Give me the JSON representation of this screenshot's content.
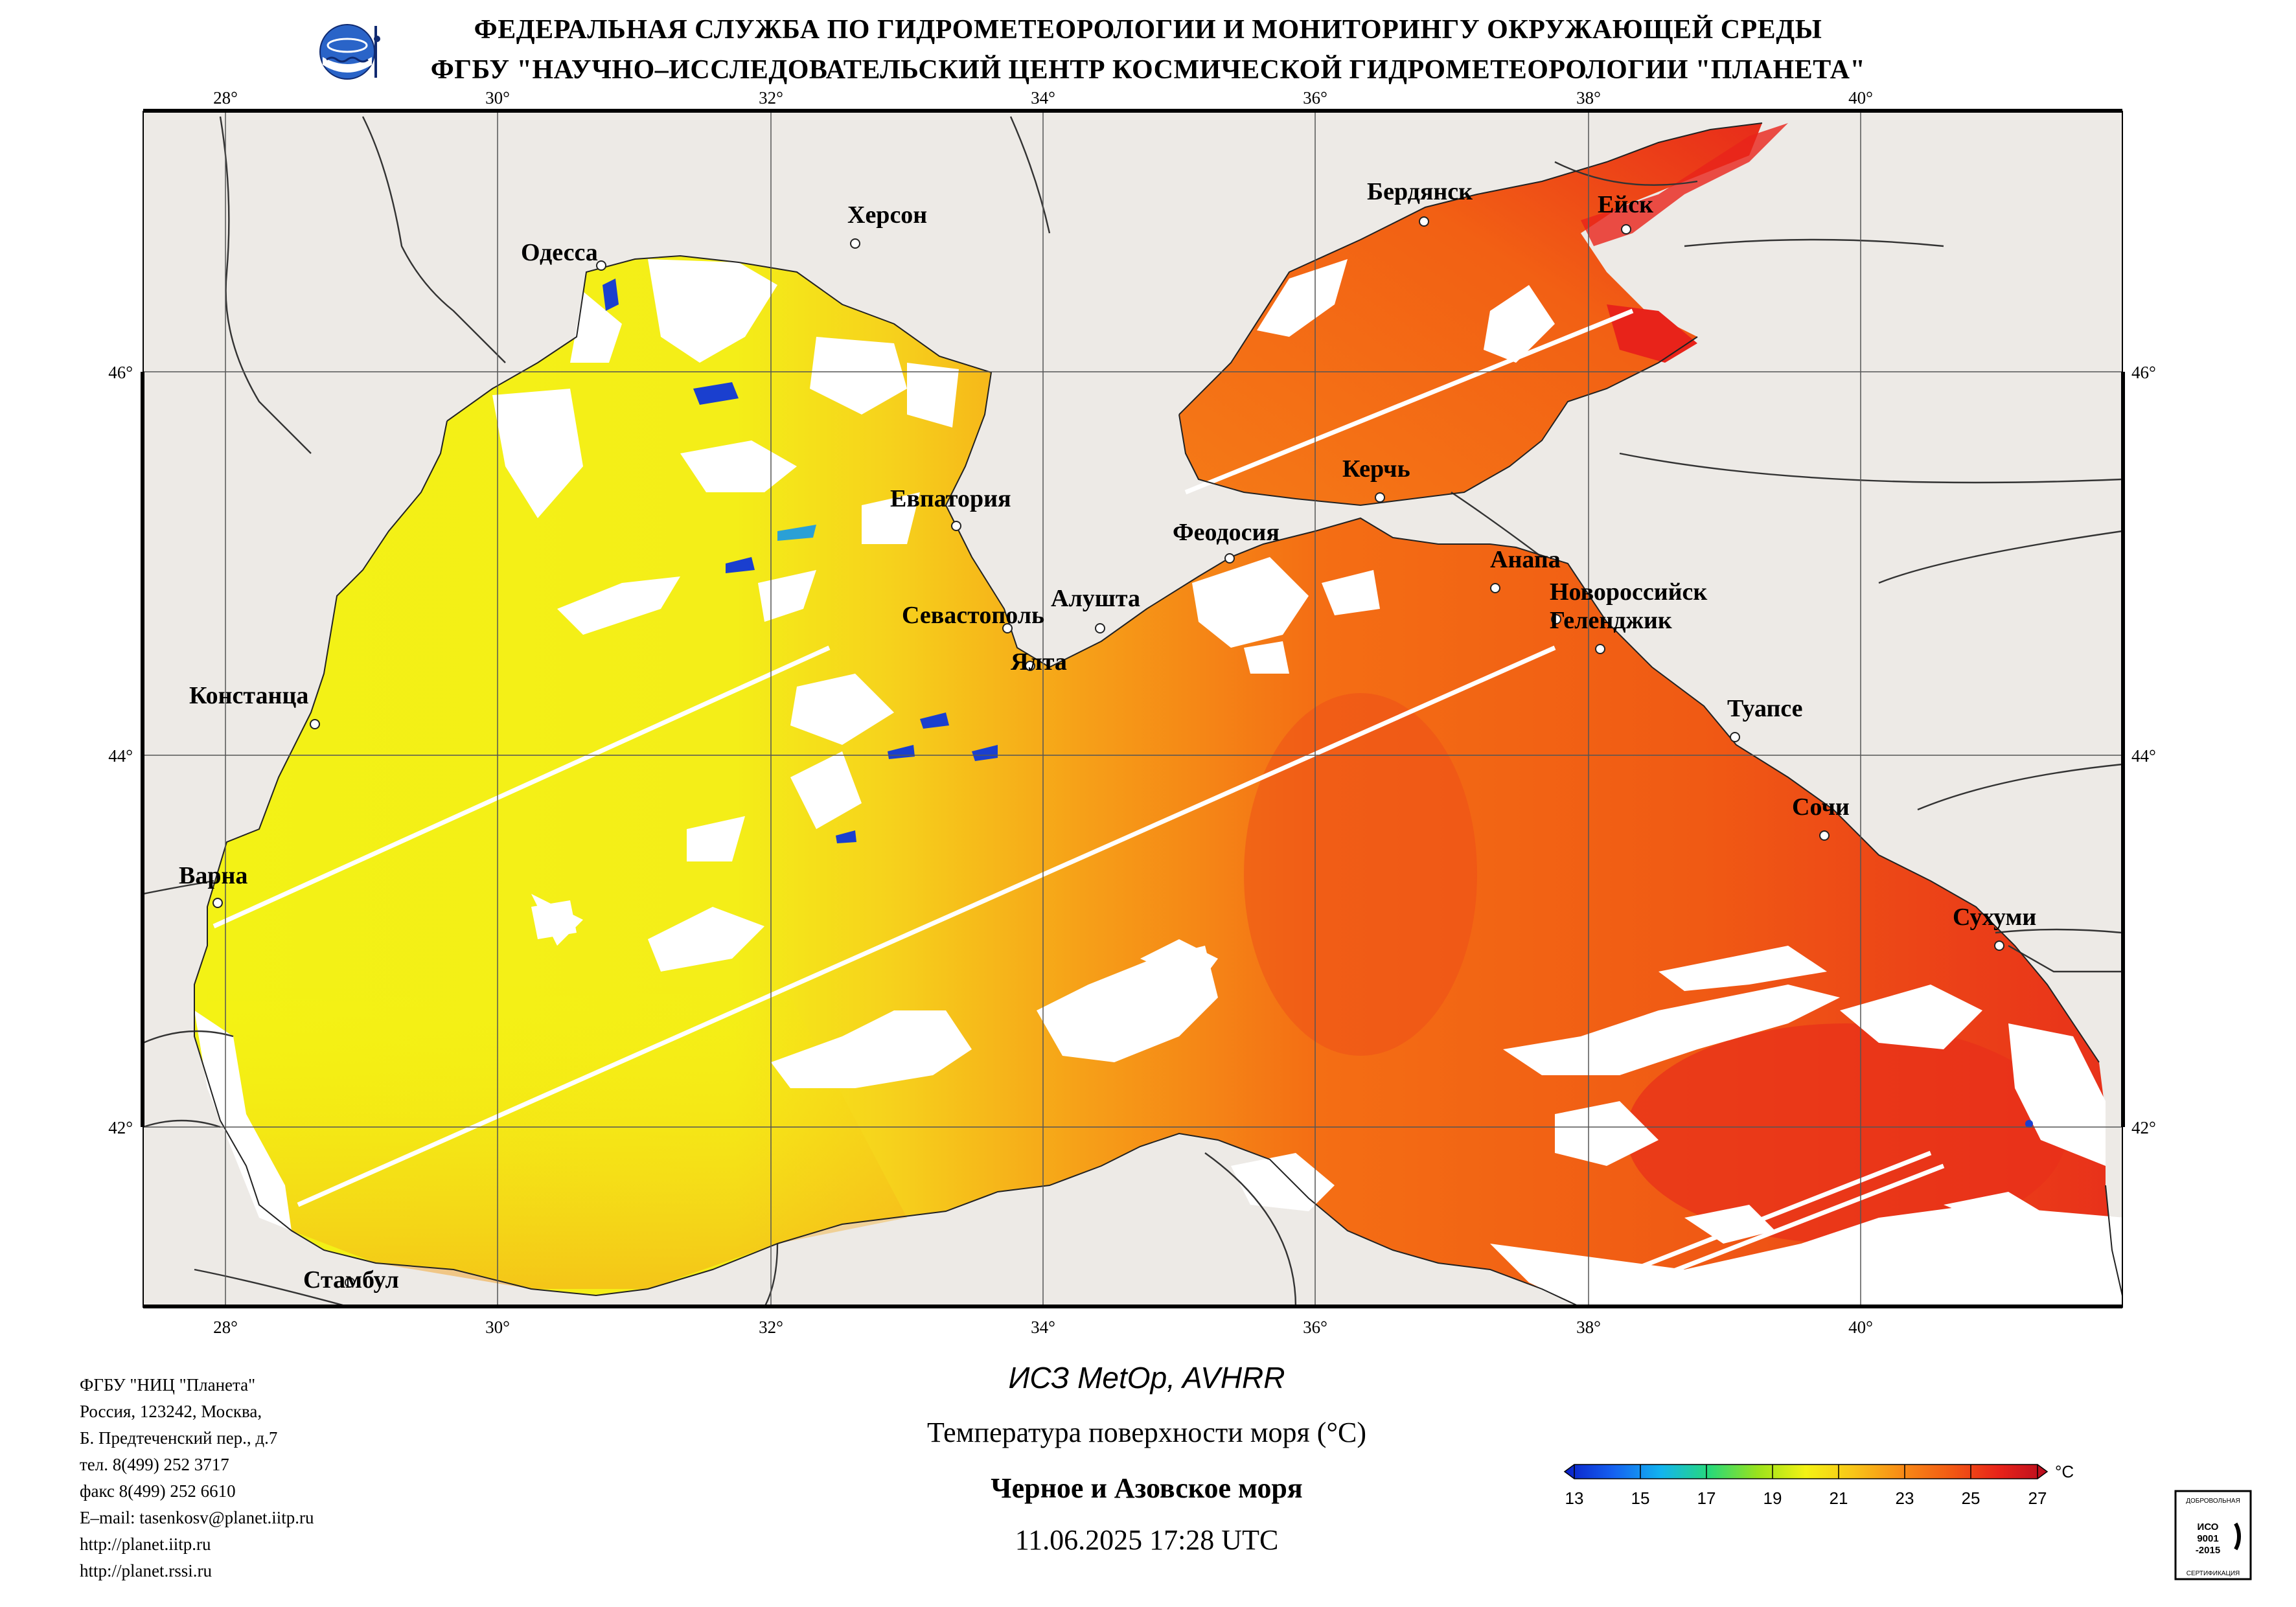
{
  "header": {
    "line1": "ФЕДЕРАЛЬНАЯ СЛУЖБА ПО ГИДРОМЕТЕОРОЛОГИИ И МОНИТОРИНГУ ОКРУЖАЮЩЕЙ СРЕДЫ",
    "line2": "ФГБУ \"НАУЧНО–ИССЛЕДОВАТЕЛЬСКИЙ ЦЕНТР КОСМИЧЕСКОЙ ГИДРОМЕТЕОРОЛОГИИ \"ПЛАНЕТА\""
  },
  "logo_icon": "planeta-emblem-icon",
  "map": {
    "lon_labels": [
      "28°",
      "30°",
      "32°",
      "34°",
      "36°",
      "38°",
      "40°"
    ],
    "lat_labels": [
      "46°",
      "44°",
      "42°"
    ],
    "cities": [
      {
        "name": "Одесса"
      },
      {
        "name": "Херсон"
      },
      {
        "name": "Бердянск"
      },
      {
        "name": "Ейск"
      },
      {
        "name": "Керчь"
      },
      {
        "name": "Евпатория"
      },
      {
        "name": "Феодосия"
      },
      {
        "name": "Анапа"
      },
      {
        "name": "Новороссийск"
      },
      {
        "name": "Геленджик"
      },
      {
        "name": "Севастополь"
      },
      {
        "name": "Алушта"
      },
      {
        "name": "Ялта"
      },
      {
        "name": "Констанца"
      },
      {
        "name": "Туапсе"
      },
      {
        "name": "Сочи"
      },
      {
        "name": "Варна"
      },
      {
        "name": "Сухуми"
      },
      {
        "name": "Стамбул"
      }
    ],
    "colors": {
      "land": "#edeae6",
      "cloud": "#ffffff",
      "sea_west": "#f3f215",
      "sea_east": "#f56a14",
      "hot": "#e8231a"
    }
  },
  "info": {
    "org": "ФГБУ \"НИЦ \"Планета\"",
    "address1": "Россия, 123242, Москва,",
    "address2": "Б. Предтеченский пер., д.7",
    "phone": "тел. 8(499) 252 3717",
    "fax": "факс 8(499) 252 6610",
    "email": "E–mail: tasenkosv@planet.iitp.ru",
    "url1": "http://planet.iitp.ru",
    "url2": "http://planet.rssi.ru"
  },
  "caption": {
    "satellite": "ИСЗ MetOp, AVHRR",
    "parameter": "Температура поверхности моря (°C)",
    "region": "Черное и Азовское моря",
    "datetime": "11.06.2025 17:28 UTC"
  },
  "colorbar": {
    "ticks": [
      "13",
      "15",
      "17",
      "19",
      "21",
      "23",
      "25",
      "27"
    ],
    "unit": "°C",
    "colors": [
      "#0a1fc8",
      "#1560f0",
      "#12b4ef",
      "#27d97a",
      "#9ae31c",
      "#f4f214",
      "#f8c418",
      "#f88a16",
      "#f25a14",
      "#e8231a",
      "#b80d1e"
    ]
  },
  "iso_badge": {
    "top": "ДОБРОВОЛЬНАЯ",
    "mid1": "ИСО",
    "mid2": "9001",
    "mid3": "-2015",
    "bottom": "СЕРТИФИКАЦИЯ"
  }
}
